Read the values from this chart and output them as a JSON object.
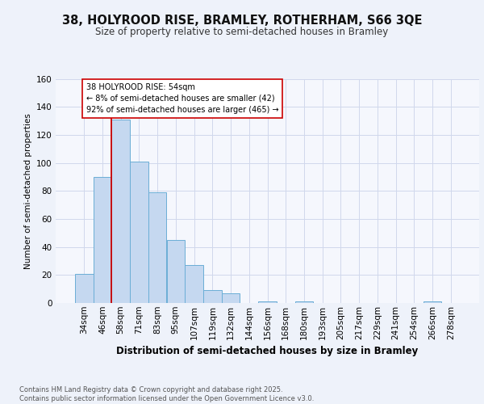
{
  "title1": "38, HOLYROOD RISE, BRAMLEY, ROTHERHAM, S66 3QE",
  "title2": "Size of property relative to semi-detached houses in Bramley",
  "xlabel": "Distribution of semi-detached houses by size in Bramley",
  "ylabel": "Number of semi-detached properties",
  "categories": [
    "34sqm",
    "46sqm",
    "58sqm",
    "71sqm",
    "83sqm",
    "95sqm",
    "107sqm",
    "119sqm",
    "132sqm",
    "144sqm",
    "156sqm",
    "168sqm",
    "180sqm",
    "193sqm",
    "205sqm",
    "217sqm",
    "229sqm",
    "241sqm",
    "254sqm",
    "266sqm",
    "278sqm"
  ],
  "values": [
    21,
    90,
    131,
    101,
    79,
    45,
    27,
    9,
    7,
    0,
    1,
    0,
    1,
    0,
    0,
    0,
    0,
    0,
    0,
    1,
    0
  ],
  "bar_color": "#c5d8f0",
  "bar_edge_color": "#6baed6",
  "annotation_text": "38 HOLYROOD RISE: 54sqm\n← 8% of semi-detached houses are smaller (42)\n92% of semi-detached houses are larger (465) →",
  "annotation_box_color": "#ffffff",
  "annotation_box_edge": "#cc0000",
  "vline_color": "#cc0000",
  "vline_x": 1.5,
  "ylim": [
    0,
    160
  ],
  "yticks": [
    0,
    20,
    40,
    60,
    80,
    100,
    120,
    140,
    160
  ],
  "footer": "Contains HM Land Registry data © Crown copyright and database right 2025.\nContains public sector information licensed under the Open Government Licence v3.0.",
  "bg_color": "#eef2fa",
  "plot_bg_color": "#f5f7fd",
  "grid_color": "#d0d8ec",
  "title1_fontsize": 10.5,
  "title2_fontsize": 8.5,
  "xlabel_fontsize": 8.5,
  "ylabel_fontsize": 7.5,
  "tick_fontsize": 7.5,
  "annot_fontsize": 7.0,
  "footer_fontsize": 6.0
}
